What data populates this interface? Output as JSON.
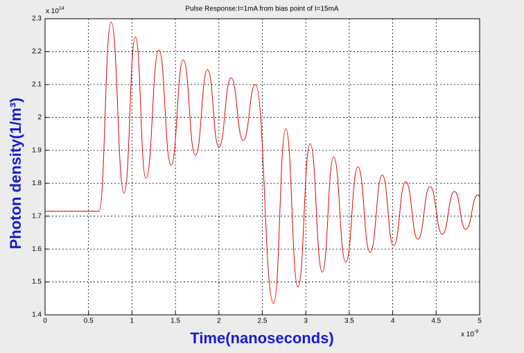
{
  "chart_data": {
    "type": "line",
    "title": "Pulse Response:I=1mA from bias point of I=15mA",
    "xlabel": "Time(nanoseconds)",
    "ylabel": "Photon density(1/m³)",
    "x_multiplier": {
      "base": "x 10",
      "exponent": "-9"
    },
    "y_multiplier": {
      "base": "x 10",
      "exponent": "14"
    },
    "x": [
      0,
      0.62,
      0.76,
      0.91,
      1.04,
      1.16,
      1.31,
      1.45,
      1.59,
      1.73,
      1.87,
      2.0,
      2.14,
      2.28,
      2.42,
      2.63,
      2.77,
      2.91,
      3.05,
      3.19,
      3.32,
      3.46,
      3.6,
      3.74,
      3.88,
      4.01,
      4.15,
      4.29,
      4.43,
      4.57,
      4.71,
      4.84,
      4.98,
      5.0
    ],
    "series": [
      {
        "color": "#e00000",
        "values": [
          1.715,
          1.715,
          2.29,
          1.77,
          2.245,
          1.815,
          2.205,
          1.855,
          2.175,
          1.885,
          2.145,
          1.91,
          2.12,
          1.93,
          2.1,
          1.435,
          1.965,
          1.485,
          1.92,
          1.53,
          1.88,
          1.56,
          1.85,
          1.59,
          1.825,
          1.61,
          1.805,
          1.63,
          1.79,
          1.645,
          1.775,
          1.66,
          1.765,
          1.76
        ]
      }
    ],
    "xlim": [
      0,
      5
    ],
    "ylim": [
      1.4,
      2.3
    ],
    "xticks": [
      0,
      0.5,
      1,
      1.5,
      2,
      2.5,
      3,
      3.5,
      4,
      4.5,
      5
    ],
    "yticks": [
      1.4,
      1.5,
      1.6,
      1.7,
      1.8,
      1.9,
      2,
      2.1,
      2.2,
      2.3
    ],
    "grid": true
  }
}
